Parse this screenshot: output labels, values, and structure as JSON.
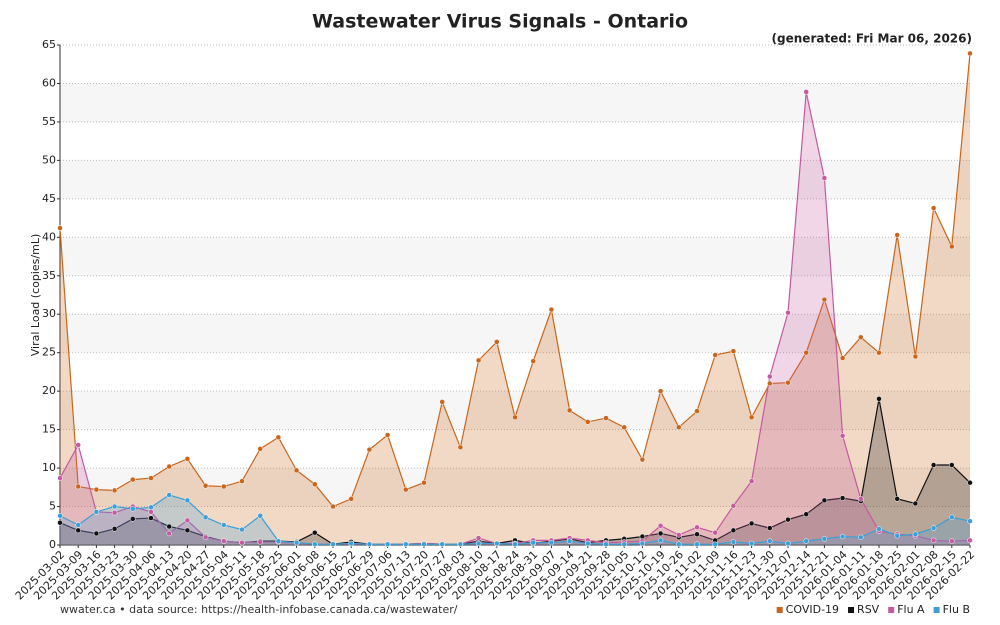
{
  "chart_data": {
    "type": "area",
    "title": "Wastewater Virus Signals - Ontario",
    "subtitle": "(generated: Fri Mar 06, 2026)",
    "y_label": "Viral Load (copies/mL)",
    "source": "wwater.ca • data source: https://health-infobase.canada.ca/wastewater/",
    "categories": [
      "2025-03-02",
      "2025-03-09",
      "2025-03-16",
      "2025-03-23",
      "2025-03-30",
      "2025-04-06",
      "2025-04-13",
      "2025-04-20",
      "2025-04-27",
      "2025-05-04",
      "2025-05-11",
      "2025-05-18",
      "2025-05-25",
      "2025-06-01",
      "2025-06-08",
      "2025-06-15",
      "2025-06-22",
      "2025-06-29",
      "2025-07-06",
      "2025-07-13",
      "2025-07-20",
      "2025-07-27",
      "2025-08-03",
      "2025-08-10",
      "2025-08-17",
      "2025-08-24",
      "2025-08-31",
      "2025-09-07",
      "2025-09-14",
      "2025-09-21",
      "2025-09-28",
      "2025-10-05",
      "2025-10-12",
      "2025-10-19",
      "2025-10-26",
      "2025-11-02",
      "2025-11-09",
      "2025-11-16",
      "2025-11-23",
      "2025-11-30",
      "2025-12-07",
      "2025-12-14",
      "2025-12-21",
      "2026-01-04",
      "2026-01-11",
      "2026-01-18",
      "2026-01-25",
      "2026-02-01",
      "2026-02-08",
      "2026-02-15",
      "2026-02-22"
    ],
    "series": [
      {
        "name": "COVID-19",
        "color": "#c9661c",
        "values": [
          41.2,
          7.6,
          7.2,
          7.1,
          8.5,
          8.7,
          10.2,
          11.2,
          7.7,
          7.6,
          8.3,
          12.5,
          14.0,
          9.7,
          7.9,
          5.0,
          6.0,
          12.4,
          14.3,
          7.2,
          8.1,
          18.6,
          12.7,
          24.0,
          26.4,
          16.6,
          23.9,
          30.6,
          17.5,
          16.0,
          16.5,
          15.3,
          11.1,
          20.0,
          15.3,
          17.4,
          24.7,
          25.2,
          16.6,
          21.0,
          21.1,
          25.0,
          31.9,
          24.3,
          27.0,
          25.0,
          40.3,
          24.5,
          43.8,
          38.8,
          63.9
        ]
      },
      {
        "name": "RSV",
        "color": "#111111",
        "values": [
          2.9,
          1.9,
          1.5,
          2.1,
          3.4,
          3.5,
          2.4,
          1.9,
          1.1,
          0.5,
          0.3,
          0.5,
          0.5,
          0.4,
          1.6,
          0.1,
          0.4,
          0.1,
          0.1,
          0.1,
          0.2,
          0.1,
          0.1,
          0.5,
          0.2,
          0.6,
          0.2,
          0.5,
          0.8,
          0.3,
          0.6,
          0.8,
          1.1,
          1.5,
          1.0,
          1.4,
          0.6,
          1.9,
          2.8,
          2.2,
          3.3,
          4.0,
          5.8,
          6.1,
          5.7,
          19.0,
          6.0,
          5.4,
          10.4,
          10.4,
          8.1
        ]
      },
      {
        "name": "Flu A",
        "color": "#c45a9f",
        "values": [
          8.7,
          13.0,
          4.3,
          4.2,
          5.0,
          4.3,
          1.5,
          3.2,
          1.0,
          0.5,
          0.3,
          0.4,
          0.4,
          0.3,
          0.1,
          0.1,
          0.2,
          0.1,
          0.1,
          0.1,
          0.2,
          0.1,
          0.1,
          0.9,
          0.2,
          0.2,
          0.6,
          0.6,
          0.9,
          0.6,
          0.3,
          0.4,
          0.5,
          2.5,
          1.3,
          2.3,
          1.6,
          5.1,
          8.3,
          21.9,
          30.2,
          58.9,
          47.7,
          14.2,
          6.0,
          1.8,
          1.4,
          1.2,
          0.6,
          0.5,
          0.6
        ]
      },
      {
        "name": "Flu B",
        "color": "#3e9fd6",
        "values": [
          3.8,
          2.6,
          4.3,
          5.0,
          4.7,
          4.9,
          6.5,
          5.8,
          3.6,
          2.6,
          2.0,
          3.8,
          0.5,
          0.3,
          0.1,
          0.1,
          0.2,
          0.1,
          0.1,
          0.1,
          0.1,
          0.1,
          0.1,
          0.2,
          0.2,
          0.1,
          0.3,
          0.3,
          0.5,
          0.2,
          0.1,
          0.1,
          0.2,
          0.6,
          0.1,
          0.1,
          0.1,
          0.4,
          0.2,
          0.5,
          0.2,
          0.5,
          0.8,
          1.1,
          1.0,
          2.1,
          1.2,
          1.4,
          2.2,
          3.6,
          3.1
        ]
      }
    ],
    "ylim": [
      0,
      65
    ],
    "yticks": [
      0,
      5,
      10,
      15,
      20,
      25,
      30,
      35,
      40,
      45,
      50,
      55,
      60,
      65
    ],
    "grid": true,
    "legend_position": "bottom-right"
  }
}
